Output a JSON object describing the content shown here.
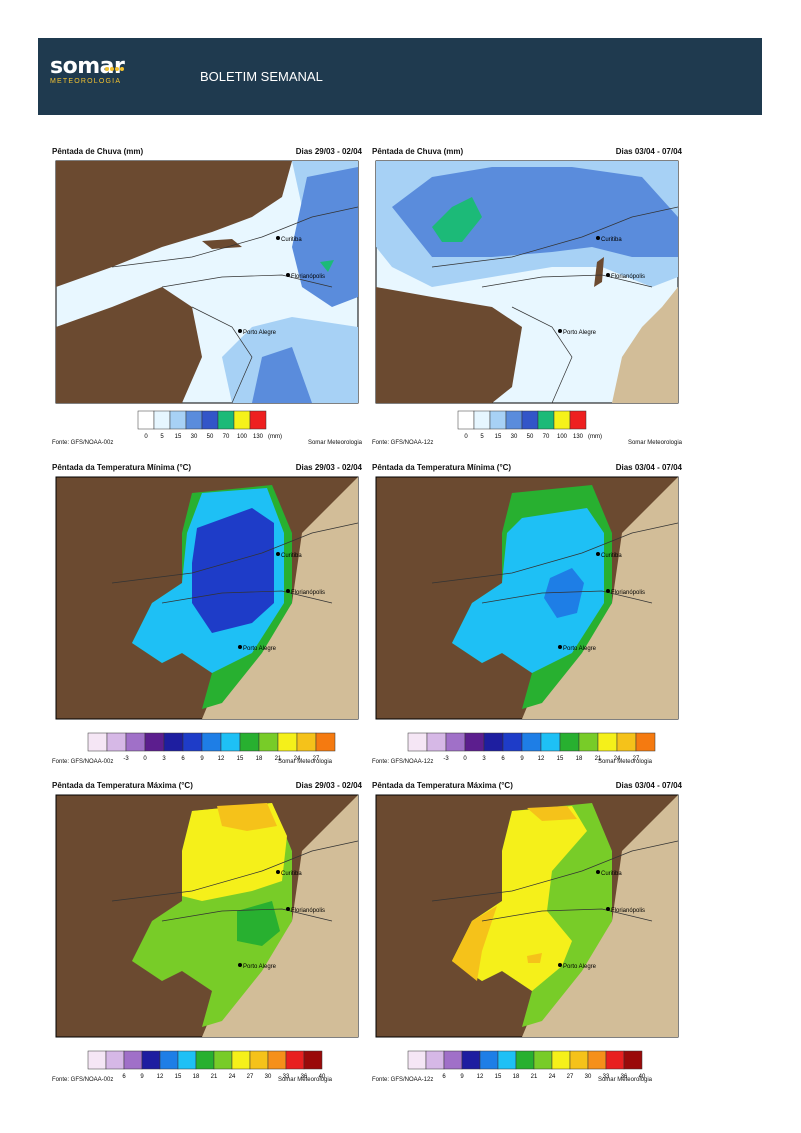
{
  "header": {
    "logo_word": "somar",
    "logo_sub": "METEOROLOGIA",
    "title": "BOLETIM SEMANAL"
  },
  "rain": {
    "title": "Pêntada de Chuva (mm)",
    "unit": "(mm)",
    "ticks": [
      "0",
      "5",
      "15",
      "30",
      "50",
      "70",
      "100",
      "130"
    ],
    "colors": [
      "#ffffff",
      "#e6f6ff",
      "#a7d1f5",
      "#5a8cdc",
      "#3355c8",
      "#1cba78",
      "#f5f21a",
      "#ee2020"
    ]
  },
  "tmin": {
    "title": "Pêntada da Temperatura Mínima (°C)",
    "ticks": [
      "-3",
      "0",
      "3",
      "6",
      "9",
      "12",
      "15",
      "18",
      "21",
      "24",
      "27"
    ],
    "colors": [
      "#f5e6f5",
      "#d6b8e6",
      "#a070c8",
      "#5c1e8e",
      "#1e1ea0",
      "#1e3cc8",
      "#1e7ee6",
      "#1ec0f5",
      "#28b030",
      "#78cc28",
      "#f5f01a",
      "#f5c21a",
      "#f57a10"
    ]
  },
  "tmax": {
    "title": "Pêntada da Temperatura Máxima (°C)",
    "ticks": [
      "6",
      "9",
      "12",
      "15",
      "18",
      "21",
      "24",
      "27",
      "30",
      "33",
      "36",
      "40"
    ],
    "colors": [
      "#f5e6f5",
      "#d6b8e6",
      "#a070c8",
      "#1e1ea0",
      "#1e7ee6",
      "#1ec0f5",
      "#28b030",
      "#78cc28",
      "#f5f01a",
      "#f5c21a",
      "#f5901a",
      "#e82020",
      "#9a0a0a"
    ]
  },
  "periods": {
    "left": "Dias 29/03 - 02/04",
    "right": "Dias 03/04 - 07/04"
  },
  "sources": {
    "left": "Fonte: GFS/NOAA-00z",
    "right": "Fonte: GFS/NOAA-12z",
    "brand": "Somar Meteorologia"
  },
  "cities": {
    "curitiba": "Curitiba",
    "florianopolis": "Florianópolis",
    "porto_alegre": "Porto Alegre"
  },
  "colors": {
    "land": "#6b4a30",
    "ocean": "#d2bd98",
    "header": "#1f3a4f",
    "brand_yellow": "#f2c230"
  }
}
